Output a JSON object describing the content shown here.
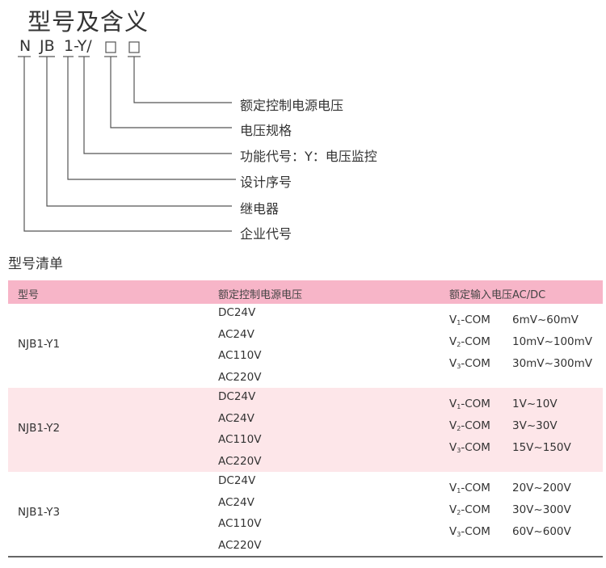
{
  "title": "型号及含义",
  "code": {
    "n": "N",
    "jb": "JB",
    "series": "1-Y/"
  },
  "labels": [
    "额定控制电源电压",
    "电压规格",
    "功能代号：Y：电压监控",
    "设计序号",
    "继电器",
    "企业代号"
  ],
  "list_title": "型号清单",
  "table": {
    "headers": [
      "型号",
      "额定控制电源电压",
      "额定输入电压AC/DC"
    ],
    "rows": [
      {
        "model": "NJB1-Y1",
        "supply": [
          "DC24V",
          "AC24V",
          "AC110V",
          "AC220V"
        ],
        "inputs": [
          {
            "terminal": "V",
            "sub": "1",
            "suffix": "-COM",
            "range": "6mV~60mV"
          },
          {
            "terminal": "V",
            "sub": "2",
            "suffix": "-COM",
            "range": "10mV~100mV"
          },
          {
            "terminal": "V",
            "sub": "3",
            "suffix": "-COM",
            "range": "30mV~300mV"
          }
        ]
      },
      {
        "model": "NJB1-Y2",
        "supply": [
          "DC24V",
          "AC24V",
          "AC110V",
          "AC220V"
        ],
        "inputs": [
          {
            "terminal": "V",
            "sub": "1",
            "suffix": "-COM",
            "range": "1V~10V"
          },
          {
            "terminal": "V",
            "sub": "2",
            "suffix": "-COM",
            "range": "3V~30V"
          },
          {
            "terminal": "V",
            "sub": "3",
            "suffix": "-COM",
            "range": "15V~150V"
          }
        ]
      },
      {
        "model": "NJB1-Y3",
        "supply": [
          "DC24V",
          "AC24V",
          "AC110V",
          "AC220V"
        ],
        "inputs": [
          {
            "terminal": "V",
            "sub": "1",
            "suffix": "-COM",
            "range": "20V~200V"
          },
          {
            "terminal": "V",
            "sub": "2",
            "suffix": "-COM",
            "range": "30V~300V"
          },
          {
            "terminal": "V",
            "sub": "3",
            "suffix": "-COM",
            "range": "60V~600V"
          }
        ]
      }
    ]
  },
  "colors": {
    "header": "#f7b5c8",
    "alt_row": "#fde6e9",
    "line": "#555555"
  }
}
